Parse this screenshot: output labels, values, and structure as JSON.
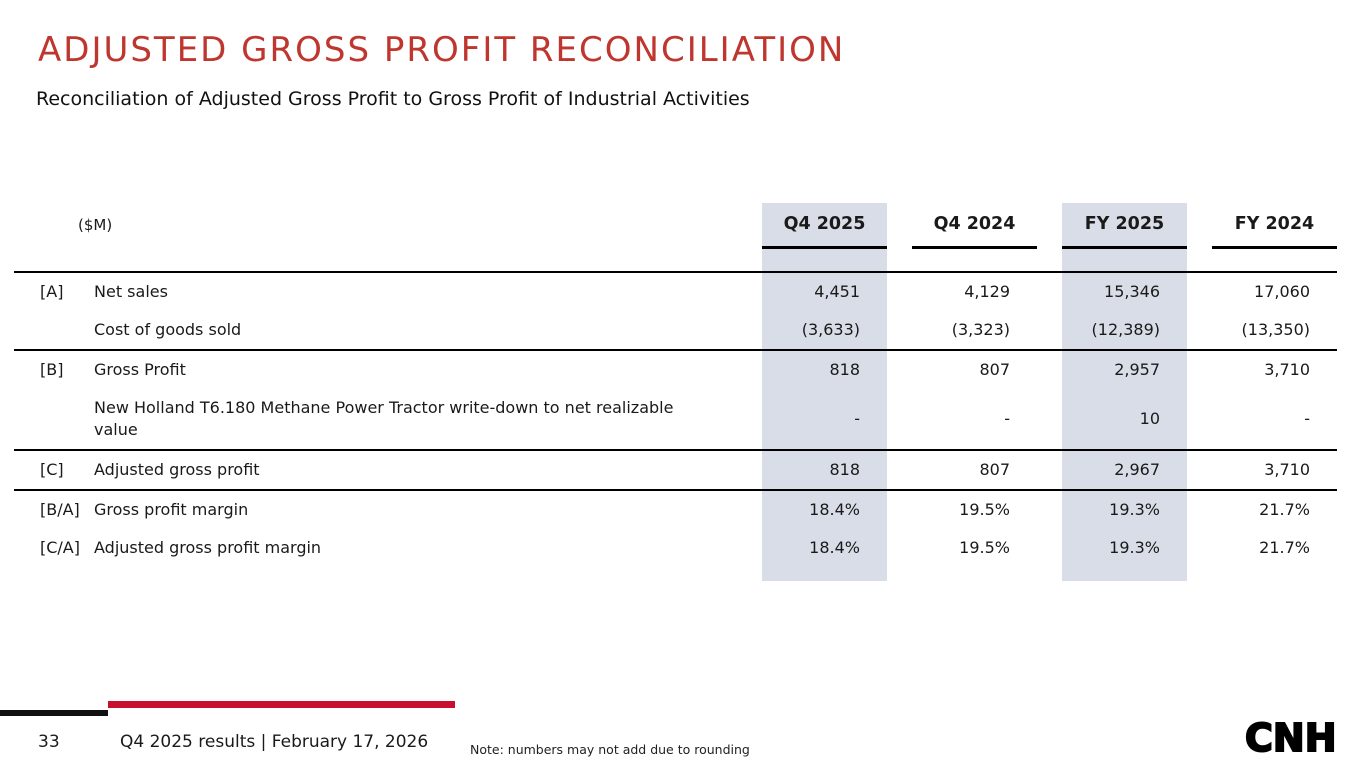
{
  "slide": {
    "title": "ADJUSTED GROSS PROFIT RECONCILIATION",
    "subtitle": "Reconciliation of Adjusted Gross Profit to Gross Profit of Industrial Activities"
  },
  "table": {
    "unit_label": "($M)",
    "columns": [
      {
        "label": "Q4 2025",
        "highlighted": true
      },
      {
        "label": "Q4 2024",
        "highlighted": false
      },
      {
        "label": "FY 2025",
        "highlighted": true
      },
      {
        "label": "FY 2024",
        "highlighted": false
      }
    ],
    "rows": [
      {
        "ref": "[A]",
        "label": "Net sales",
        "values": [
          "4,451",
          "4,129",
          "15,346",
          "17,060"
        ],
        "rule_below": false
      },
      {
        "ref": "",
        "label": "Cost of goods sold",
        "values": [
          "(3,633)",
          "(3,323)",
          "(12,389)",
          "(13,350)"
        ],
        "rule_below": true
      },
      {
        "ref": "[B]",
        "label": "Gross Profit",
        "values": [
          "818",
          "807",
          "2,957",
          "3,710"
        ],
        "rule_below": false
      },
      {
        "ref": "",
        "label": "New Holland T6.180 Methane Power Tractor write-down to net realizable value",
        "values": [
          "-",
          "-",
          "10",
          "-"
        ],
        "rule_below": true
      },
      {
        "ref": "[C]",
        "label": "Adjusted gross profit",
        "values": [
          "818",
          "807",
          "2,967",
          "3,710"
        ],
        "rule_below": true
      },
      {
        "ref": "[B/A]",
        "label": "Gross profit margin",
        "values": [
          "18.4%",
          "19.5%",
          "19.3%",
          "21.7%"
        ],
        "rule_below": false
      },
      {
        "ref": "[C/A]",
        "label": "Adjusted gross profit margin",
        "values": [
          "18.4%",
          "19.5%",
          "19.3%",
          "21.7%"
        ],
        "rule_below": false
      }
    ]
  },
  "footer": {
    "page_number": "33",
    "caption": "Q4 2025 results | February 17, 2026",
    "note": "Note: numbers may not add due to rounding",
    "logo_text": "CNH"
  },
  "colors": {
    "title_red": "#BE362E",
    "accent_red": "#C8102E",
    "highlight": "#D8DDE7",
    "text": "#1a1a1a"
  }
}
